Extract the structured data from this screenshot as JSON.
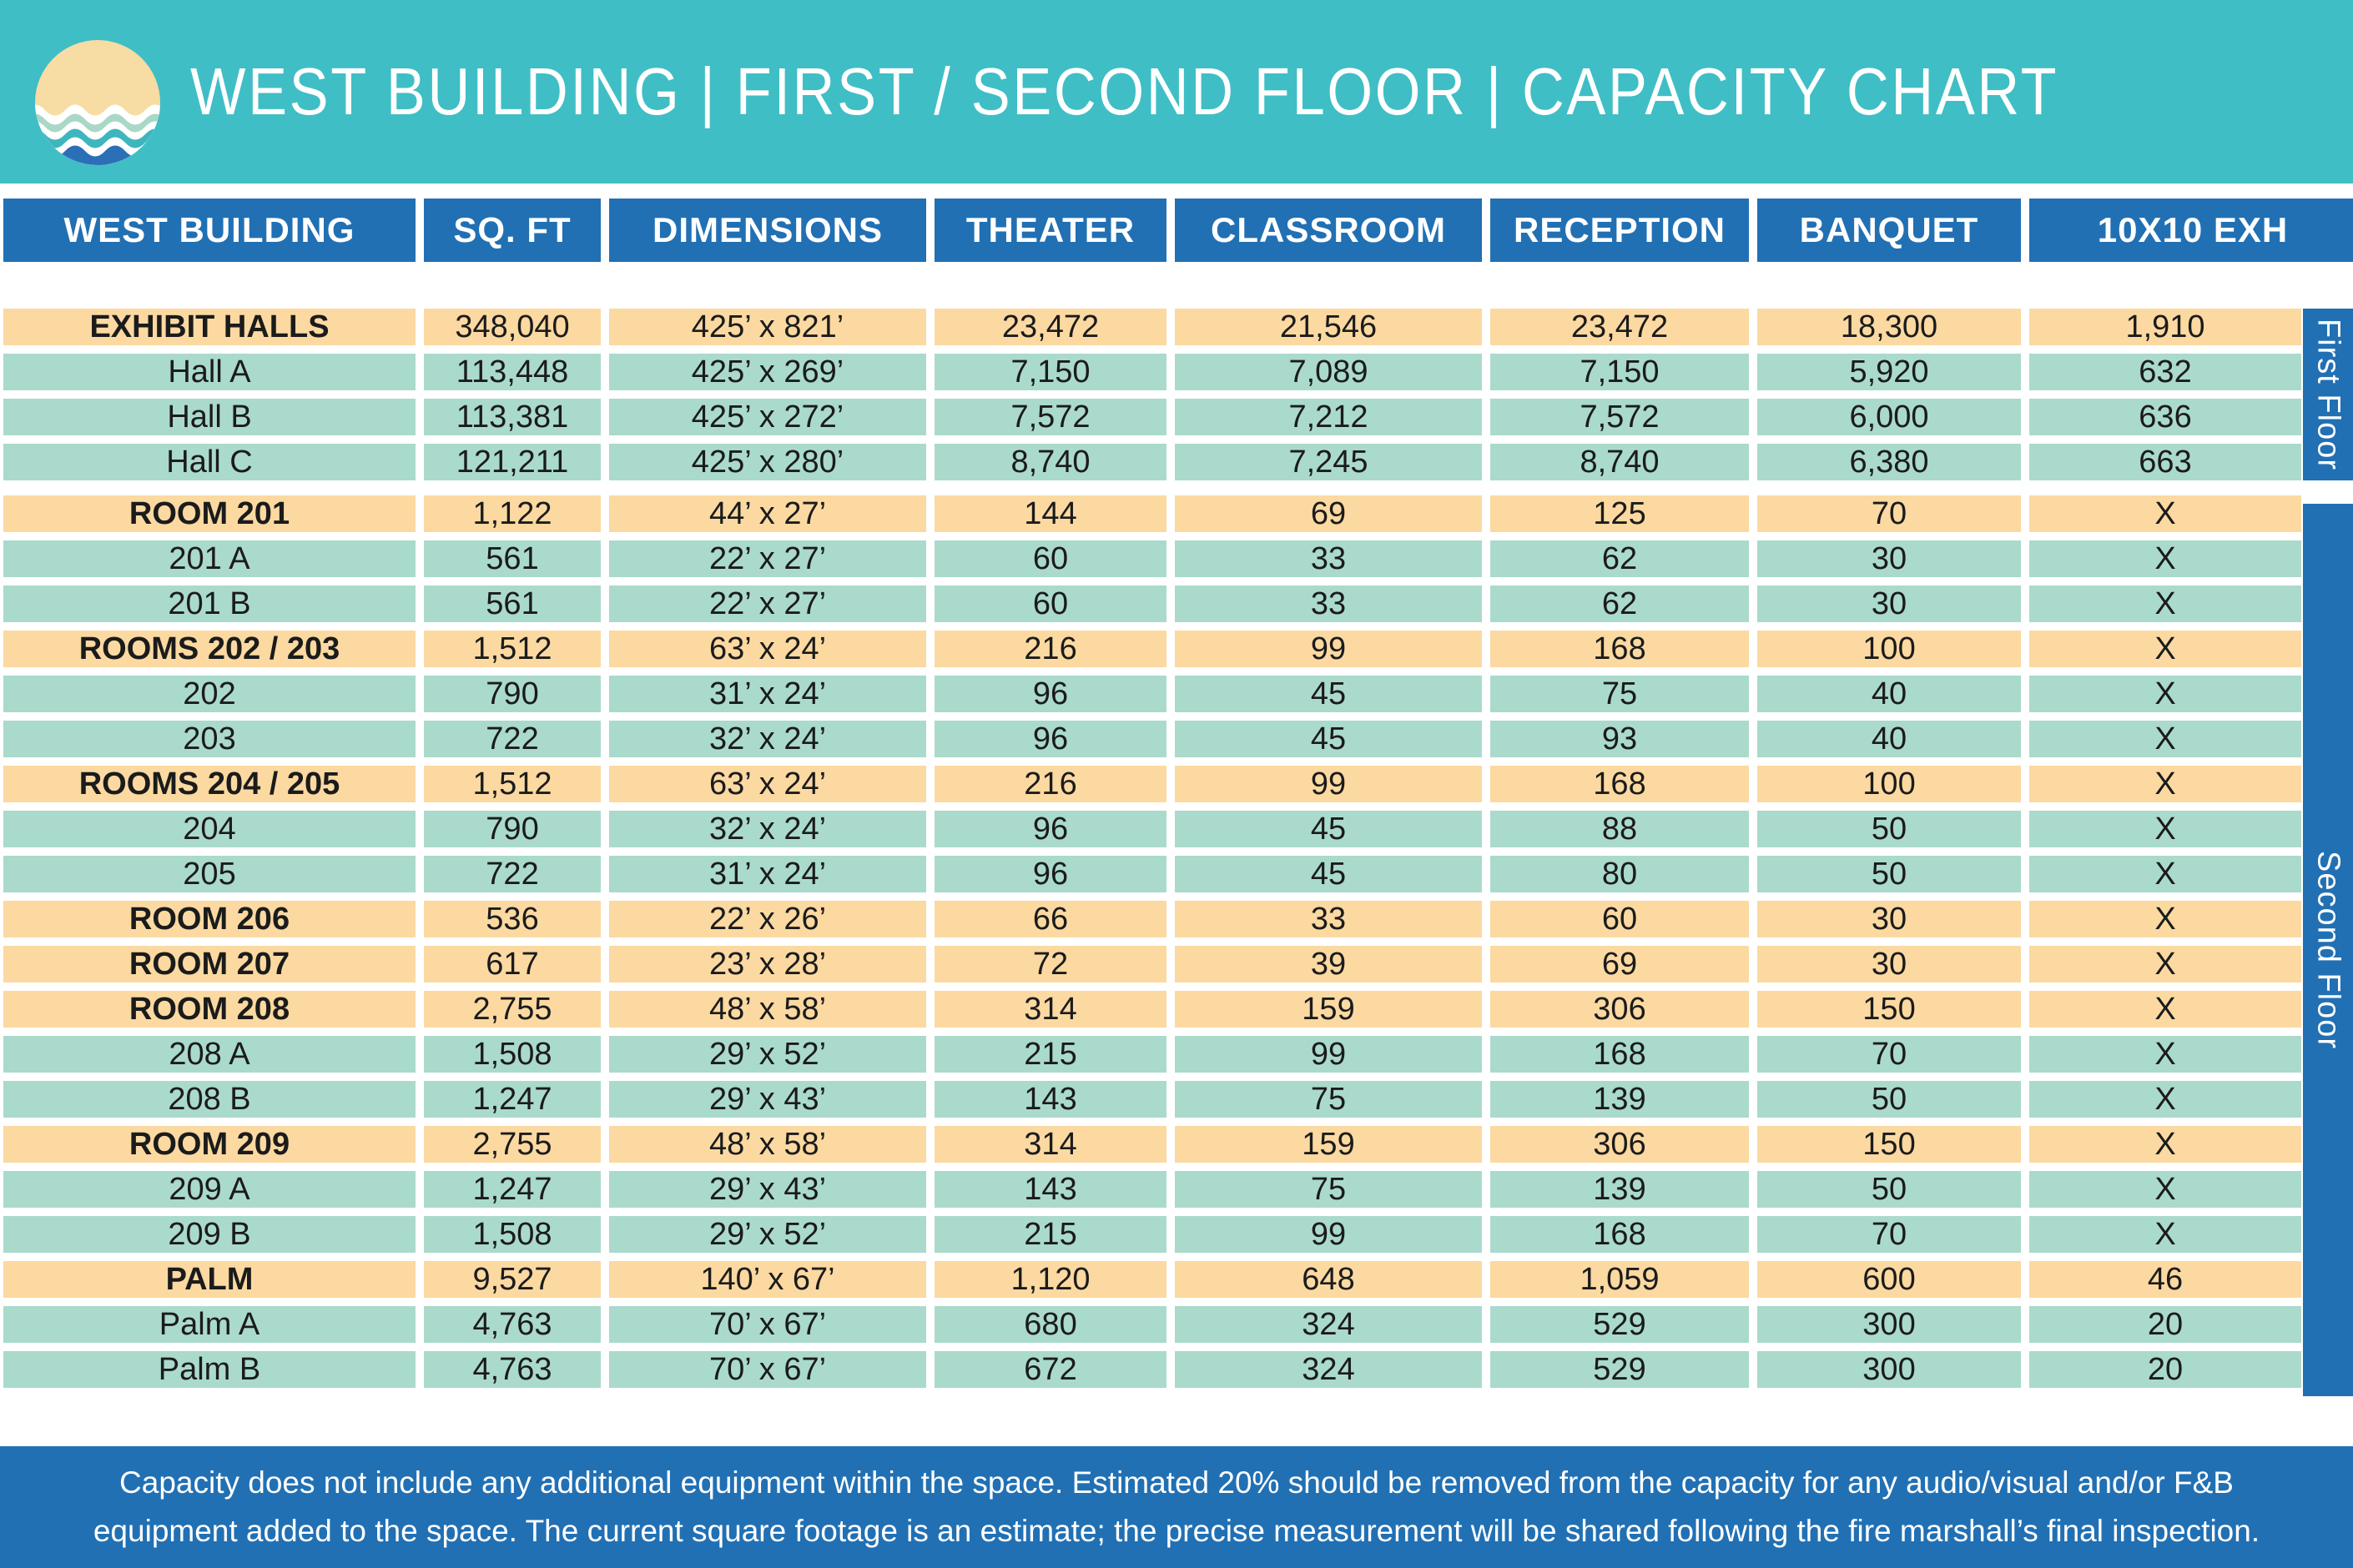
{
  "header": {
    "title": "WEST BUILDING | FIRST / SECOND FLOOR | CAPACITY CHART",
    "logo": "sun-over-waves-logo"
  },
  "floor_labels": {
    "first": "First Floor",
    "second": "Second Floor"
  },
  "footer": {
    "line1": "Capacity does not include any additional equipment within the space. Estimated 20% should be removed from the capacity for any audio/visual and/or F&B",
    "line2": "equipment added to the space. The current square footage is an estimate; the precise measurement will be shared following the fire marshall’s final inspection."
  },
  "colors": {
    "band_teal": "#3FBEC5",
    "header_blue": "#2170B4",
    "row_orange": "#FBD9A1",
    "row_green": "#AADACC",
    "footer_blue": "#2170B4",
    "logo_sand": "#F7DCA3",
    "logo_wave_green": "#A9D8C6",
    "logo_wave_teal": "#3EB6BE",
    "logo_wave_blue": "#2B6FB7"
  },
  "chart_data": {
    "type": "table",
    "title": "WEST BUILDING | FIRST / SECOND FLOOR | CAPACITY CHART",
    "columns": [
      "WEST BUILDING",
      "SQ. FT",
      "DIMENSIONS",
      "THEATER",
      "CLASSROOM",
      "RECEPTION",
      "BANQUET",
      "10X10 EXH"
    ],
    "rows": [
      {
        "name": "EXHIBIT HALLS",
        "style": "group",
        "floor": "first",
        "values": [
          "348,040",
          "425’ x 821’",
          "23,472",
          "21,546",
          "23,472",
          "18,300",
          "1,910"
        ]
      },
      {
        "name": "Hall A",
        "style": "sub",
        "floor": "first",
        "values": [
          "113,448",
          "425’ x 269’",
          "7,150",
          "7,089",
          "7,150",
          "5,920",
          "632"
        ]
      },
      {
        "name": "Hall B",
        "style": "sub",
        "floor": "first",
        "values": [
          "113,381",
          "425’ x 272’",
          "7,572",
          "7,212",
          "7,572",
          "6,000",
          "636"
        ]
      },
      {
        "name": "Hall C",
        "style": "sub",
        "floor": "first",
        "values": [
          "121,211",
          "425’ x 280’",
          "8,740",
          "7,245",
          "8,740",
          "6,380",
          "663"
        ]
      },
      {
        "name": "ROOM 201",
        "style": "group",
        "floor": "second",
        "values": [
          "1,122",
          "44’ x 27’",
          "144",
          "69",
          "125",
          "70",
          "X"
        ]
      },
      {
        "name": "201 A",
        "style": "sub",
        "floor": "second",
        "values": [
          "561",
          "22’ x 27’",
          "60",
          "33",
          "62",
          "30",
          "X"
        ]
      },
      {
        "name": "201 B",
        "style": "sub",
        "floor": "second",
        "values": [
          "561",
          "22’ x 27’",
          "60",
          "33",
          "62",
          "30",
          "X"
        ]
      },
      {
        "name": "ROOMS 202 / 203",
        "style": "group",
        "floor": "second",
        "values": [
          "1,512",
          "63’ x 24’",
          "216",
          "99",
          "168",
          "100",
          "X"
        ]
      },
      {
        "name": "202",
        "style": "sub",
        "floor": "second",
        "values": [
          "790",
          "31’ x 24’",
          "96",
          "45",
          "75",
          "40",
          "X"
        ]
      },
      {
        "name": "203",
        "style": "sub",
        "floor": "second",
        "values": [
          "722",
          "32’ x 24’",
          "96",
          "45",
          "93",
          "40",
          "X"
        ]
      },
      {
        "name": "ROOMS 204 / 205",
        "style": "group",
        "floor": "second",
        "values": [
          "1,512",
          "63’ x 24’",
          "216",
          "99",
          "168",
          "100",
          "X"
        ]
      },
      {
        "name": "204",
        "style": "sub",
        "floor": "second",
        "values": [
          "790",
          "32’ x 24’",
          "96",
          "45",
          "88",
          "50",
          "X"
        ]
      },
      {
        "name": "205",
        "style": "sub",
        "floor": "second",
        "values": [
          "722",
          "31’ x 24’",
          "96",
          "45",
          "80",
          "50",
          "X"
        ]
      },
      {
        "name": "ROOM 206",
        "style": "group",
        "floor": "second",
        "values": [
          "536",
          "22’ x 26’",
          "66",
          "33",
          "60",
          "30",
          "X"
        ]
      },
      {
        "name": "ROOM 207",
        "style": "group",
        "floor": "second",
        "values": [
          "617",
          "23’ x 28’",
          "72",
          "39",
          "69",
          "30",
          "X"
        ]
      },
      {
        "name": "ROOM 208",
        "style": "group",
        "floor": "second",
        "values": [
          "2,755",
          "48’ x 58’",
          "314",
          "159",
          "306",
          "150",
          "X"
        ]
      },
      {
        "name": "208 A",
        "style": "sub",
        "floor": "second",
        "values": [
          "1,508",
          "29’ x 52’",
          "215",
          "99",
          "168",
          "70",
          "X"
        ]
      },
      {
        "name": "208 B",
        "style": "sub",
        "floor": "second",
        "values": [
          "1,247",
          "29’ x 43’",
          "143",
          "75",
          "139",
          "50",
          "X"
        ]
      },
      {
        "name": "ROOM 209",
        "style": "group",
        "floor": "second",
        "values": [
          "2,755",
          "48’ x 58’",
          "314",
          "159",
          "306",
          "150",
          "X"
        ]
      },
      {
        "name": "209 A",
        "style": "sub",
        "floor": "second",
        "values": [
          "1,247",
          "29’ x 43’",
          "143",
          "75",
          "139",
          "50",
          "X"
        ]
      },
      {
        "name": "209 B",
        "style": "sub",
        "floor": "second",
        "values": [
          "1,508",
          "29’ x 52’",
          "215",
          "99",
          "168",
          "70",
          "X"
        ]
      },
      {
        "name": "PALM",
        "style": "group",
        "floor": "second",
        "values": [
          "9,527",
          "140’ x 67’",
          "1,120",
          "648",
          "1,059",
          "600",
          "46"
        ]
      },
      {
        "name": "Palm A",
        "style": "sub",
        "floor": "second",
        "values": [
          "4,763",
          "70’ x 67’",
          "680",
          "324",
          "529",
          "300",
          "20"
        ]
      },
      {
        "name": "Palm B",
        "style": "sub",
        "floor": "second",
        "values": [
          "4,763",
          "70’ x 67’",
          "672",
          "324",
          "529",
          "300",
          "20"
        ]
      }
    ]
  }
}
